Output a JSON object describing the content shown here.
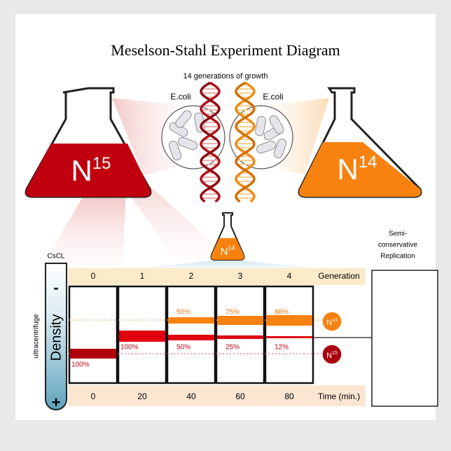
{
  "title": "Meselson-Stahl Experiment Diagram",
  "growth_label": "14 generations of growth",
  "ecoli_labels": [
    "E.coli",
    "E.coli"
  ],
  "flasks": {
    "left": {
      "element": "N",
      "isotope": "15"
    },
    "right": {
      "element": "N",
      "isotope": "14"
    },
    "center": {
      "element": "N",
      "isotope": "14"
    }
  },
  "tube": {
    "label": "CsCL",
    "side_label": "ultracentrifuge",
    "axis_label": "Density",
    "top": "-",
    "bottom": "+"
  },
  "table": {
    "generation_header": "Generation",
    "generations": [
      0,
      1,
      2,
      3,
      4
    ],
    "time_header": "Time (min.)",
    "times": [
      0,
      20,
      40,
      60,
      80
    ],
    "band_labels": [
      [
        "100%"
      ],
      [
        "100%"
      ],
      [
        "50%",
        "50%"
      ],
      [
        "75%",
        "25%"
      ],
      [
        "88%",
        "12%"
      ]
    ]
  },
  "legend": {
    "n14": {
      "element": "N",
      "isotope": "14"
    },
    "n15": {
      "element": "N",
      "isotope": "15"
    }
  },
  "replication_box": {
    "lines": [
      "Semi-",
      "conservative",
      "Replication"
    ]
  }
}
